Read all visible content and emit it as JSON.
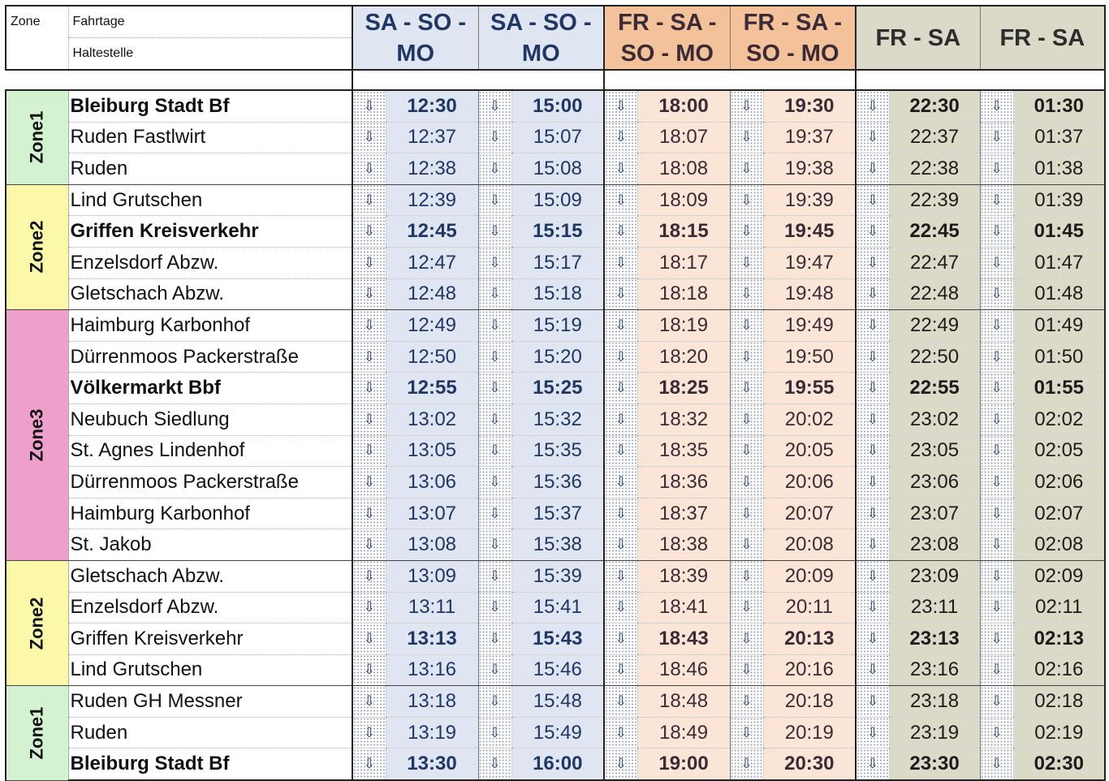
{
  "header": {
    "zone_label": "Zone",
    "fahrtage_label": "Fahrtage",
    "haltestelle_label": "Haltestelle",
    "columns": [
      {
        "line1": "SA - SO -",
        "line2": "MO",
        "color": "#dfe6f1"
      },
      {
        "line1": "SA - SO -",
        "line2": "MO",
        "color": "#dfe6f1"
      },
      {
        "line1": "FR - SA -",
        "line2": "SO - MO",
        "color": "#f4c29a"
      },
      {
        "line1": "FR - SA -",
        "line2": "SO - MO",
        "color": "#f4c29a"
      },
      {
        "line1": "FR - SA",
        "line2": "",
        "color": "#dbd9c7"
      },
      {
        "line1": "FR - SA",
        "line2": "",
        "color": "#dbd9c7"
      }
    ]
  },
  "arrow_icon": "⇩",
  "zones": [
    {
      "name": "Zone1",
      "color": "#d3f3d0",
      "rows": 3
    },
    {
      "name": "Zone2",
      "color": "#fbf9a9",
      "rows": 4
    },
    {
      "name": "Zone3",
      "color": "#ee9fcb",
      "rows": 8
    },
    {
      "name": "Zone2",
      "color": "#fbf9a9",
      "rows": 4
    },
    {
      "name": "Zone1",
      "color": "#d3f3d0",
      "rows": 3
    }
  ],
  "stops": [
    {
      "name": "Bleiburg Stadt Bf",
      "bold": true,
      "times": [
        "12:30",
        "15:00",
        "18:00",
        "19:30",
        "22:30",
        "01:30"
      ]
    },
    {
      "name": "Ruden Fastlwirt",
      "bold": false,
      "times": [
        "12:37",
        "15:07",
        "18:07",
        "19:37",
        "22:37",
        "01:37"
      ]
    },
    {
      "name": "Ruden",
      "bold": false,
      "times": [
        "12:38",
        "15:08",
        "18:08",
        "19:38",
        "22:38",
        "01:38"
      ]
    },
    {
      "name": "Lind Grutschen",
      "bold": false,
      "times": [
        "12:39",
        "15:09",
        "18:09",
        "19:39",
        "22:39",
        "01:39"
      ]
    },
    {
      "name": "Griffen Kreisverkehr",
      "bold": true,
      "times": [
        "12:45",
        "15:15",
        "18:15",
        "19:45",
        "22:45",
        "01:45"
      ]
    },
    {
      "name": "Enzelsdorf Abzw.",
      "bold": false,
      "times": [
        "12:47",
        "15:17",
        "18:17",
        "19:47",
        "22:47",
        "01:47"
      ]
    },
    {
      "name": "Gletschach Abzw.",
      "bold": false,
      "times": [
        "12:48",
        "15:18",
        "18:18",
        "19:48",
        "22:48",
        "01:48"
      ]
    },
    {
      "name": "Haimburg Karbonhof",
      "bold": false,
      "times": [
        "12:49",
        "15:19",
        "18:19",
        "19:49",
        "22:49",
        "01:49"
      ]
    },
    {
      "name": "Dürrenmoos Packerstraße",
      "bold": false,
      "times": [
        "12:50",
        "15:20",
        "18:20",
        "19:50",
        "22:50",
        "01:50"
      ]
    },
    {
      "name": "Völkermarkt Bbf",
      "bold": true,
      "times": [
        "12:55",
        "15:25",
        "18:25",
        "19:55",
        "22:55",
        "01:55"
      ]
    },
    {
      "name": "Neubuch Siedlung",
      "bold": false,
      "times": [
        "13:02",
        "15:32",
        "18:32",
        "20:02",
        "23:02",
        "02:02"
      ]
    },
    {
      "name": "St. Agnes Lindenhof",
      "bold": false,
      "times": [
        "13:05",
        "15:35",
        "18:35",
        "20:05",
        "23:05",
        "02:05"
      ]
    },
    {
      "name": "Dürrenmoos Packerstraße",
      "bold": false,
      "times": [
        "13:06",
        "15:36",
        "18:36",
        "20:06",
        "23:06",
        "02:06"
      ]
    },
    {
      "name": "Haimburg Karbonhof",
      "bold": false,
      "times": [
        "13:07",
        "15:37",
        "18:37",
        "20:07",
        "23:07",
        "02:07"
      ]
    },
    {
      "name": "St. Jakob",
      "bold": false,
      "times": [
        "13:08",
        "15:38",
        "18:38",
        "20:08",
        "23:08",
        "02:08"
      ]
    },
    {
      "name": "Gletschach Abzw.",
      "bold": false,
      "times": [
        "13:09",
        "15:39",
        "18:39",
        "20:09",
        "23:09",
        "02:09"
      ]
    },
    {
      "name": "Enzelsdorf Abzw.",
      "bold": false,
      "times": [
        "13:11",
        "15:41",
        "18:41",
        "20:11",
        "23:11",
        "02:11"
      ]
    },
    {
      "name": "Griffen Kreisverkehr",
      "bold": false,
      "times": [
        "13:13",
        "15:43",
        "18:43",
        "20:13",
        "23:13",
        "02:13"
      ],
      "bold_times": true
    },
    {
      "name": "Lind Grutschen",
      "bold": false,
      "times": [
        "13:16",
        "15:46",
        "18:46",
        "20:16",
        "23:16",
        "02:16"
      ]
    },
    {
      "name": "Ruden GH Messner",
      "bold": false,
      "times": [
        "13:18",
        "15:48",
        "18:48",
        "20:18",
        "23:18",
        "02:18"
      ]
    },
    {
      "name": "Ruden",
      "bold": false,
      "times": [
        "13:19",
        "15:49",
        "18:49",
        "20:19",
        "23:19",
        "02:19"
      ]
    },
    {
      "name": "Bleiburg Stadt Bf",
      "bold": true,
      "times": [
        "13:30",
        "16:00",
        "19:00",
        "20:30",
        "23:30",
        "02:30"
      ]
    }
  ]
}
